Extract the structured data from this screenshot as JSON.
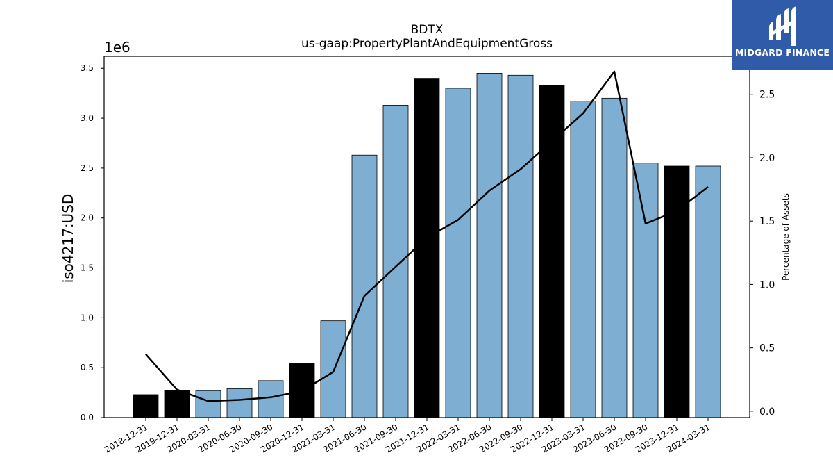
{
  "chart_data": {
    "type": "bar",
    "title": "BDTX",
    "subtitle": "us-gaap:PropertyPlantAndEquipmentGross",
    "ylabel": "iso4217:USD",
    "y_scale_label": "1e6",
    "y2label": "Percentage of Assets",
    "categories": [
      "2018-12-31",
      "2019-12-31",
      "2020-03-31",
      "2020-06-30",
      "2020-09-30",
      "2020-12-31",
      "2021-03-31",
      "2021-06-30",
      "2021-09-30",
      "2021-12-31",
      "2022-03-31",
      "2022-06-30",
      "2022-09-30",
      "2022-12-31",
      "2023-03-31",
      "2023-06-30",
      "2023-09-30",
      "2023-12-31",
      "2024-03-31"
    ],
    "series": [
      {
        "values": [
          0.23,
          0.27,
          0.27,
          0.29,
          0.37,
          0.54,
          0.97,
          2.63,
          3.13,
          3.4,
          3.3,
          3.45,
          3.43,
          3.33,
          3.17,
          3.2,
          2.55,
          2.52,
          2.52
        ],
        "fiscal_year_end": [
          true,
          true,
          false,
          false,
          false,
          true,
          false,
          false,
          false,
          true,
          false,
          false,
          false,
          true,
          false,
          false,
          false,
          true,
          false
        ]
      },
      {
        "type": "line",
        "axis": "right",
        "values": [
          0.45,
          0.17,
          0.08,
          0.09,
          0.11,
          0.16,
          0.31,
          0.91,
          1.14,
          1.37,
          1.51,
          1.74,
          1.91,
          2.13,
          2.35,
          2.68,
          1.48,
          1.58,
          1.77
        ]
      }
    ],
    "ylim": [
      0,
      3.62
    ],
    "y_ticks": [
      "0.0",
      "0.5",
      "1.0",
      "1.5",
      "2.0",
      "2.5",
      "3.0",
      "3.5"
    ],
    "y2lim": [
      -0.05,
      2.8
    ],
    "y2_ticks": [
      "0.0",
      "0.5",
      "1.0",
      "1.5",
      "2.0",
      "2.5"
    ],
    "colors": {
      "bar": "#7eafd3",
      "bar_highlight": "#000000",
      "line": "#000000"
    }
  },
  "logo": {
    "text": "MIDGARD FINANCE"
  }
}
